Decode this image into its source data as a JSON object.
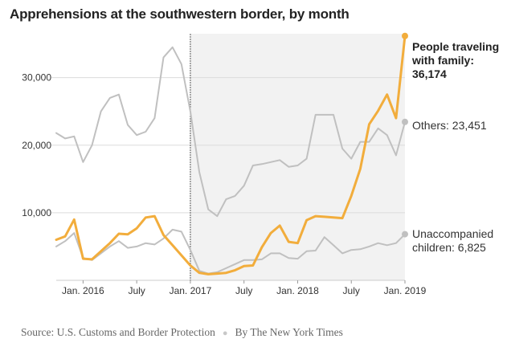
{
  "chart_data": {
    "type": "line",
    "title": "Apprehensions at the southwestern border, by month",
    "x": [
      "2015-10",
      "2015-11",
      "2015-12",
      "2016-01",
      "2016-02",
      "2016-03",
      "2016-04",
      "2016-05",
      "2016-06",
      "2016-07",
      "2016-08",
      "2016-09",
      "2016-10",
      "2016-11",
      "2016-12",
      "2017-01",
      "2017-02",
      "2017-03",
      "2017-04",
      "2017-05",
      "2017-06",
      "2017-07",
      "2017-08",
      "2017-09",
      "2017-10",
      "2017-11",
      "2017-12",
      "2018-01",
      "2018-02",
      "2018-03",
      "2018-04",
      "2018-05",
      "2018-06",
      "2018-07",
      "2018-08",
      "2018-09",
      "2018-10",
      "2018-11",
      "2018-12",
      "2019-01"
    ],
    "series": [
      {
        "name": "People traveling with family",
        "color": "#f2ad3c",
        "values": [
          6000,
          6500,
          9000,
          3200,
          3100,
          4300,
          5500,
          6900,
          6800,
          7700,
          9300,
          9500,
          6700,
          5200,
          3700,
          2200,
          1100,
          900,
          1000,
          1100,
          1500,
          2100,
          2200,
          4900,
          7000,
          8100,
          5700,
          5500,
          8900,
          9500,
          9400,
          9300,
          9200,
          12500,
          16500,
          23100,
          25100,
          27500,
          24000,
          36174
        ]
      },
      {
        "name": "Others",
        "color": "#c0c0c0",
        "values": [
          21800,
          21000,
          21300,
          17500,
          20000,
          25000,
          27000,
          27500,
          23000,
          21500,
          22000,
          24000,
          33000,
          34500,
          32000,
          25000,
          16000,
          10500,
          9500,
          12000,
          12500,
          14000,
          17000,
          17200,
          17500,
          17800,
          16800,
          17000,
          18000,
          24500,
          24500,
          24500,
          19500,
          18000,
          20500,
          20500,
          22500,
          21500,
          18500,
          23451
        ]
      },
      {
        "name": "Unaccompanied children",
        "color": "#c0c0c0",
        "values": [
          5000,
          5800,
          7000,
          3300,
          3000,
          4000,
          5000,
          5800,
          4800,
          5000,
          5500,
          5300,
          6200,
          7500,
          7200,
          4500,
          1400,
          1000,
          1200,
          1800,
          2400,
          3000,
          3000,
          3100,
          4000,
          4000,
          3300,
          3200,
          4300,
          4400,
          6400,
          5200,
          4000,
          4500,
          4600,
          5000,
          5500,
          5200,
          5500,
          6825
        ]
      }
    ],
    "y_ticks": [
      "10,000",
      "20,000",
      "30,000"
    ],
    "x_ticks": [
      "Jan. 2016",
      "July",
      "Jan. 2017",
      "July",
      "Jan. 2018",
      "July",
      "Jan. 2019"
    ],
    "ylim": [
      0,
      36500
    ],
    "shaded_from": "2017-01",
    "grid": true,
    "annotations": {
      "family": [
        "People traveling",
        "with family:",
        "36,174"
      ],
      "others": "Others: 23,451",
      "children": [
        "Unaccompanied",
        "children: 6,825"
      ]
    }
  },
  "footer": {
    "source": "Source: U.S. Customs and Border Protection",
    "credit": "By The New York Times"
  }
}
